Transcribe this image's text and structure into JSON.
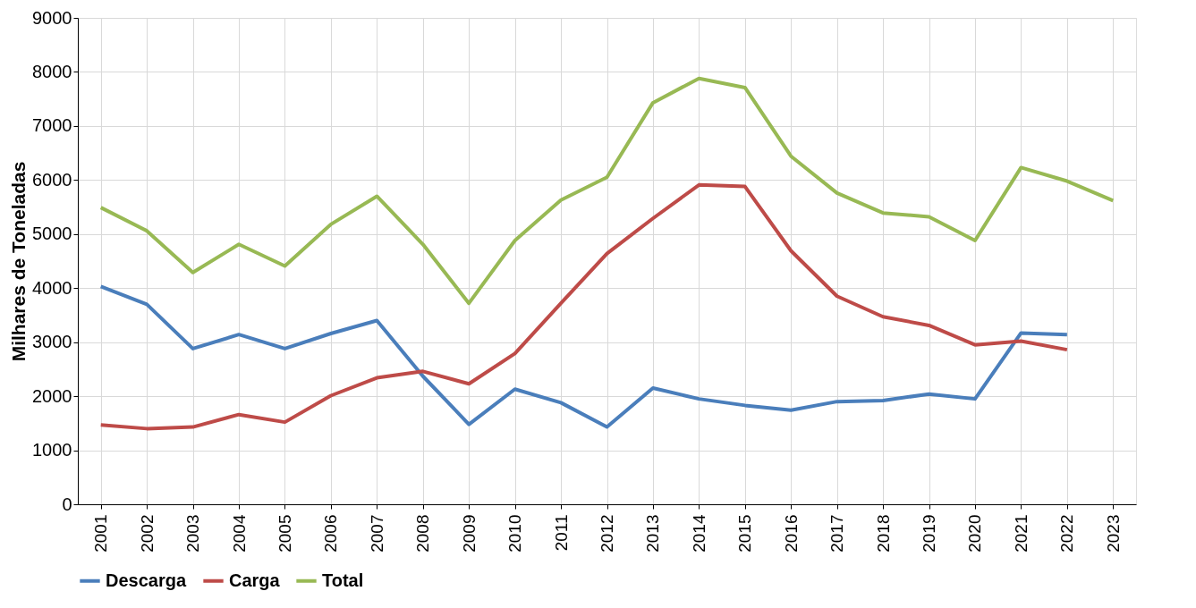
{
  "chart_data": {
    "type": "line",
    "ylabel": "Milhares de Toneladas",
    "categories": [
      "2001",
      "2002",
      "2003",
      "2004",
      "2005",
      "2006",
      "2007",
      "2008",
      "2009",
      "2010",
      "2011",
      "2012",
      "2013",
      "2014",
      "2015",
      "2016",
      "2017",
      "2018",
      "2019",
      "2020",
      "2021",
      "2022",
      "2023"
    ],
    "series": [
      {
        "name": "Descarga",
        "color": "#4a7ebb",
        "values": [
          4030,
          3700,
          2880,
          3140,
          2880,
          3160,
          3400,
          2370,
          1480,
          2130,
          1880,
          1430,
          2150,
          1950,
          1830,
          1740,
          1900,
          1920,
          2040,
          1950,
          3170,
          3140,
          null
        ]
      },
      {
        "name": "Carga",
        "color": "#be4b48",
        "values": [
          1470,
          1400,
          1430,
          1660,
          1520,
          2010,
          2340,
          2460,
          2230,
          2790,
          3720,
          4640,
          5290,
          5910,
          5880,
          4690,
          3850,
          3470,
          3310,
          2950,
          3020,
          2860,
          null
        ]
      },
      {
        "name": "Total",
        "color": "#98b954",
        "values": [
          5490,
          5060,
          4290,
          4810,
          4410,
          5180,
          5700,
          4810,
          3720,
          4880,
          5630,
          6050,
          7430,
          7880,
          7710,
          6440,
          5760,
          5390,
          5320,
          4880,
          6230,
          5980,
          5620
        ]
      }
    ],
    "ylim": [
      0,
      9000
    ],
    "yticks": [
      0,
      1000,
      2000,
      3000,
      4000,
      5000,
      6000,
      7000,
      8000,
      9000
    ],
    "grid": true,
    "legend": "bottom",
    "marker": "none",
    "line_style": "solid"
  }
}
